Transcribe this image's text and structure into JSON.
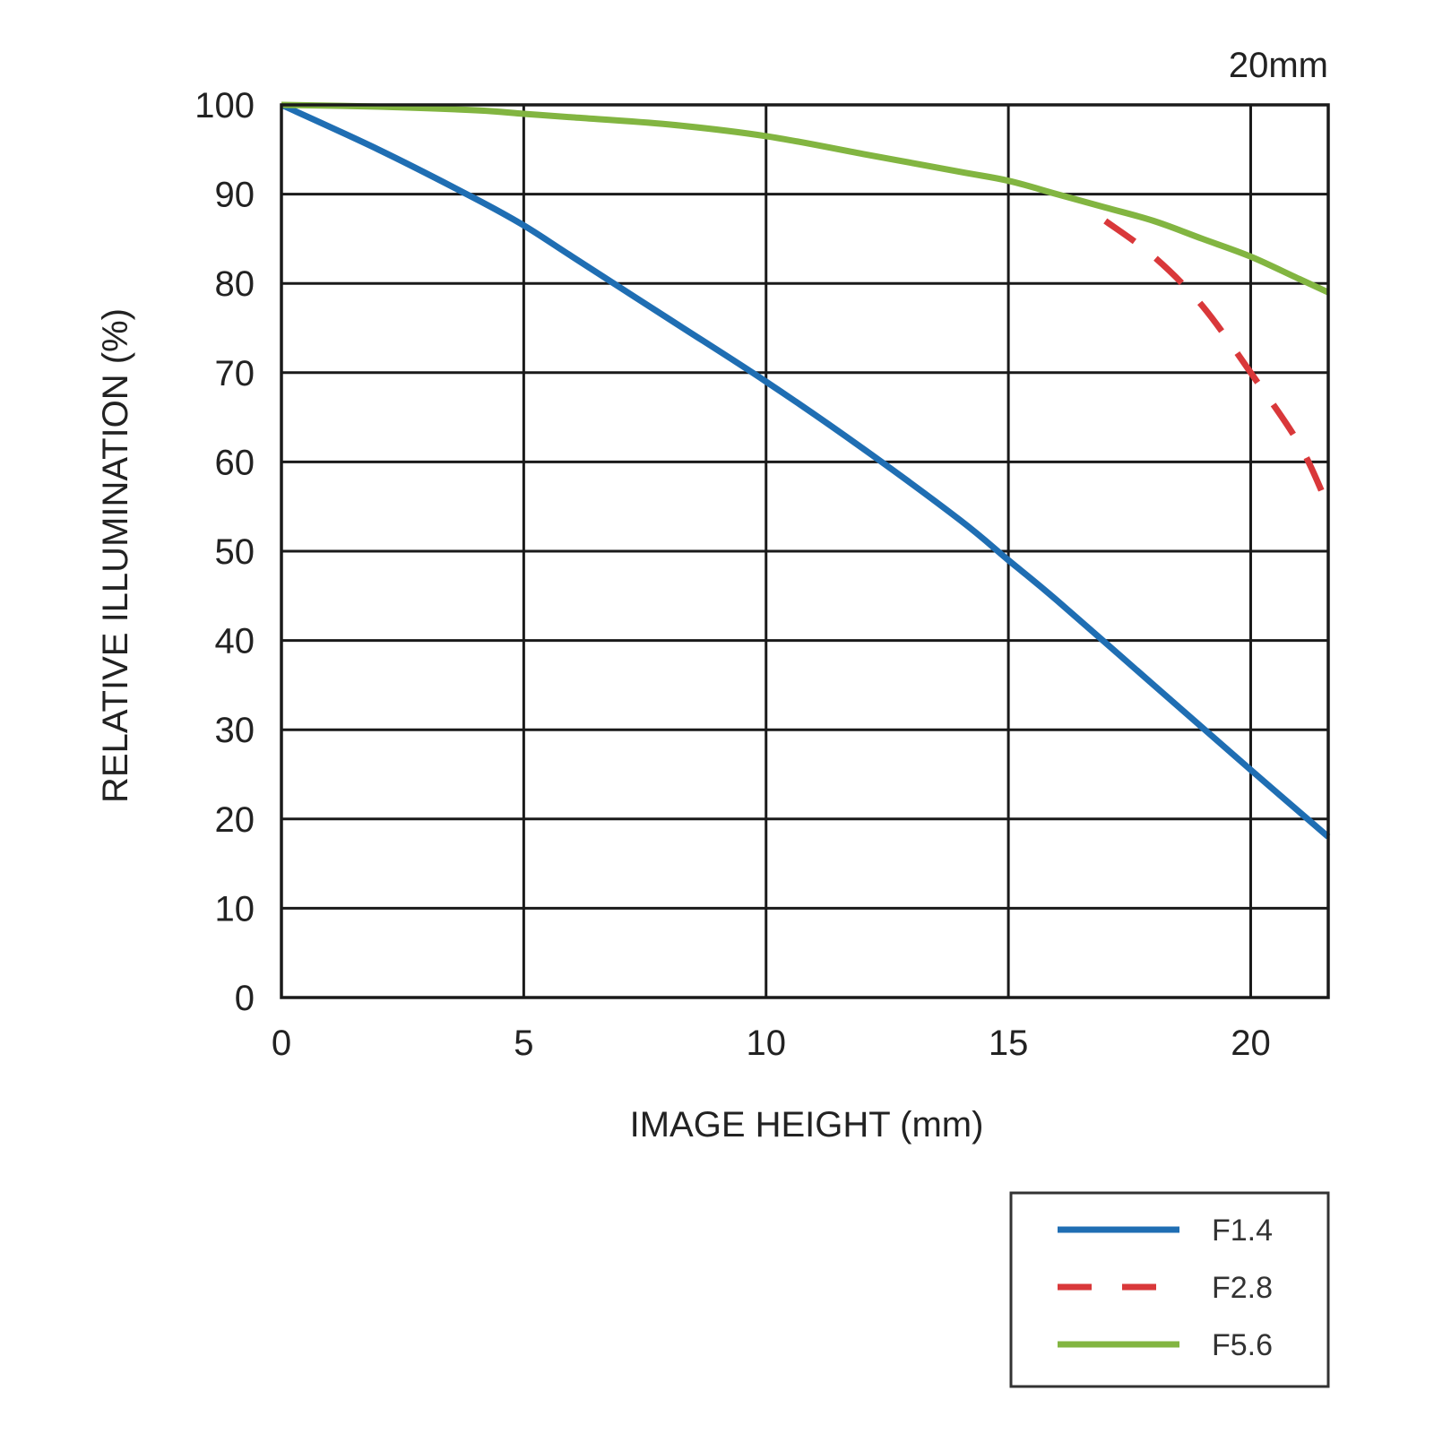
{
  "chart_data": {
    "type": "line",
    "title": "20mm",
    "xlabel": "IMAGE HEIGHT (mm)",
    "ylabel": "RELATIVE ILLUMINATION (%)",
    "xlim": [
      0,
      21.6
    ],
    "ylim": [
      0,
      100
    ],
    "x_ticks": [
      "0",
      "5",
      "10",
      "15",
      "20"
    ],
    "y_ticks": [
      "0",
      "10",
      "20",
      "30",
      "40",
      "50",
      "60",
      "70",
      "80",
      "90",
      "100"
    ],
    "grid": true,
    "legend_position": "bottom-right",
    "series": [
      {
        "name": "F1.4",
        "color": "#1f6eb3",
        "dash": false,
        "x": [
          0,
          2,
          4,
          5,
          6,
          8,
          10,
          12,
          14,
          15,
          16,
          18,
          20,
          21.6
        ],
        "y": [
          100,
          95,
          89.5,
          86.5,
          83,
          76,
          69,
          61.5,
          53.5,
          49,
          44.5,
          35,
          25.5,
          18
        ]
      },
      {
        "name": "F2.8",
        "color": "#d9383a",
        "dash": true,
        "x": [
          17,
          18,
          19,
          20,
          21,
          21.6
        ],
        "y": [
          87,
          83,
          77.5,
          70,
          62,
          55
        ]
      },
      {
        "name": "F5.6",
        "color": "#82b541",
        "dash": false,
        "x": [
          0,
          2,
          4,
          5,
          6,
          8,
          10,
          12,
          14,
          15,
          16,
          17,
          18,
          19,
          20,
          21,
          21.6
        ],
        "y": [
          100,
          99.8,
          99.4,
          99,
          98.6,
          97.8,
          96.5,
          94.5,
          92.5,
          91.5,
          90,
          88.5,
          87,
          85,
          83,
          80.5,
          79
        ]
      }
    ]
  }
}
